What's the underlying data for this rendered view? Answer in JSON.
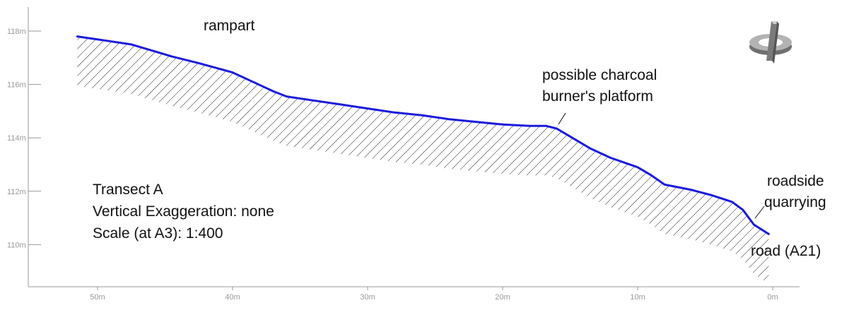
{
  "chart_data": {
    "type": "line",
    "subtype": "terrain-profile-transect",
    "x_axis": {
      "ticks": [
        50,
        40,
        30,
        20,
        10,
        0
      ],
      "tick_labels": [
        "50m",
        "40m",
        "30m",
        "20m",
        "10m",
        "0m"
      ],
      "range": [
        55,
        -2
      ],
      "direction": "decreasing-left-to-right"
    },
    "y_axis": {
      "ticks": [
        118,
        116,
        114,
        112,
        110
      ],
      "tick_labels": [
        "118m",
        "116m",
        "114m",
        "112m",
        "110m"
      ],
      "range": [
        108.5,
        118.8
      ]
    },
    "grid": false,
    "series": [
      {
        "color": "#1a1adc",
        "fill": "hatched",
        "x": [
          51.5,
          49.5,
          47.5,
          45.5,
          44.5,
          42.5,
          40,
          38.5,
          37,
          36,
          34,
          32,
          30,
          28,
          26,
          24,
          22,
          20,
          18,
          16.8,
          16,
          15,
          13.5,
          12,
          10,
          9,
          8,
          6,
          4.5,
          3,
          2.2,
          1.4,
          0.3
        ],
        "y": [
          117.8,
          117.65,
          117.5,
          117.2,
          117.05,
          116.8,
          116.45,
          116.1,
          115.75,
          115.55,
          115.4,
          115.25,
          115.1,
          114.95,
          114.85,
          114.7,
          114.6,
          114.5,
          114.45,
          114.45,
          114.35,
          114.05,
          113.6,
          113.25,
          112.9,
          112.6,
          112.25,
          112.05,
          111.85,
          111.6,
          111.3,
          110.75,
          110.4
        ]
      }
    ],
    "annotations": [
      {
        "text": "rampart"
      },
      {
        "lines": [
          "possible charcoal",
          "burner's platform"
        ]
      },
      {
        "lines": [
          "roadside",
          "quarrying"
        ]
      },
      {
        "text": "road (A21)"
      }
    ],
    "info_lines": [
      "Transect A",
      "Vertical Exaggeration: none",
      "Scale (at A3): 1:400"
    ],
    "icon": "north-arrow-icon"
  }
}
